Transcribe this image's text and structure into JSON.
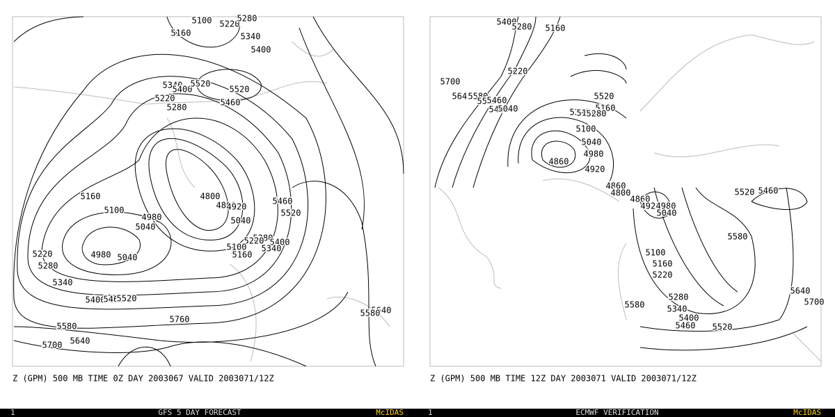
{
  "panels": [
    {
      "contour_labels": [
        5100,
        5160,
        5220,
        5280,
        5340,
        5400,
        5340,
        5400,
        5520,
        5520,
        5460,
        5220,
        5280,
        5160,
        5100,
        4980,
        5040,
        4980,
        5040,
        4800,
        4860,
        4920,
        5460,
        5520,
        5040,
        5280,
        5400,
        5220,
        5100,
        5340,
        5160,
        5220,
        5280,
        5340,
        5400,
        5460,
        5520,
        5580,
        5640,
        5700,
        5760,
        5640,
        5580
      ],
      "caption": "Z (GPM) 500 MB TIME 0Z DAY 2003067 VALID 2003071/12Z",
      "status": {
        "frame": "1",
        "title": "GFS 5 DAY FORECAST",
        "brand": "McIDAS"
      }
    },
    {
      "contour_labels": [
        5400,
        5280,
        5160,
        5220,
        5700,
        5640,
        5580,
        5520,
        5460,
        5400,
        5040,
        5520,
        5160,
        5220,
        5100,
        5280,
        5100,
        5040,
        4980,
        4920,
        4860,
        4860,
        4800,
        4860,
        4920,
        4980,
        5040,
        5520,
        5460,
        5580,
        5100,
        5160,
        5220,
        5280,
        5340,
        5400,
        5460,
        5520,
        5580,
        5640,
        5700
      ],
      "caption": "Z (GPM) 500 MB TIME 12Z DAY 2003071 VALID 2003071/12Z",
      "status": {
        "frame": "1",
        "title": "ECMWF VERIFICATION",
        "brand": "McIDAS"
      }
    }
  ]
}
